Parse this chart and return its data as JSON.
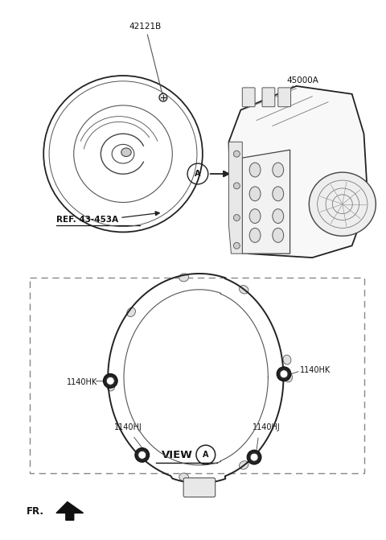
{
  "bg_color": "#ffffff",
  "label_42121B": "42121B",
  "label_45000A": "45000A",
  "label_REF": "REF. 43-453A",
  "label_1140HJ_1": "1140HJ",
  "label_1140HJ_2": "1140HJ",
  "label_1140HK_1": "1140HK",
  "label_1140HK_2": "1140HK",
  "label_view": "VIEW",
  "label_fr": "FR.",
  "label_A": "A",
  "line_color": "#222222",
  "light_line": "#555555",
  "text_color": "#111111",
  "font_size_label": 7.5,
  "font_size_small": 6.0,
  "font_size_fr": 8.5
}
